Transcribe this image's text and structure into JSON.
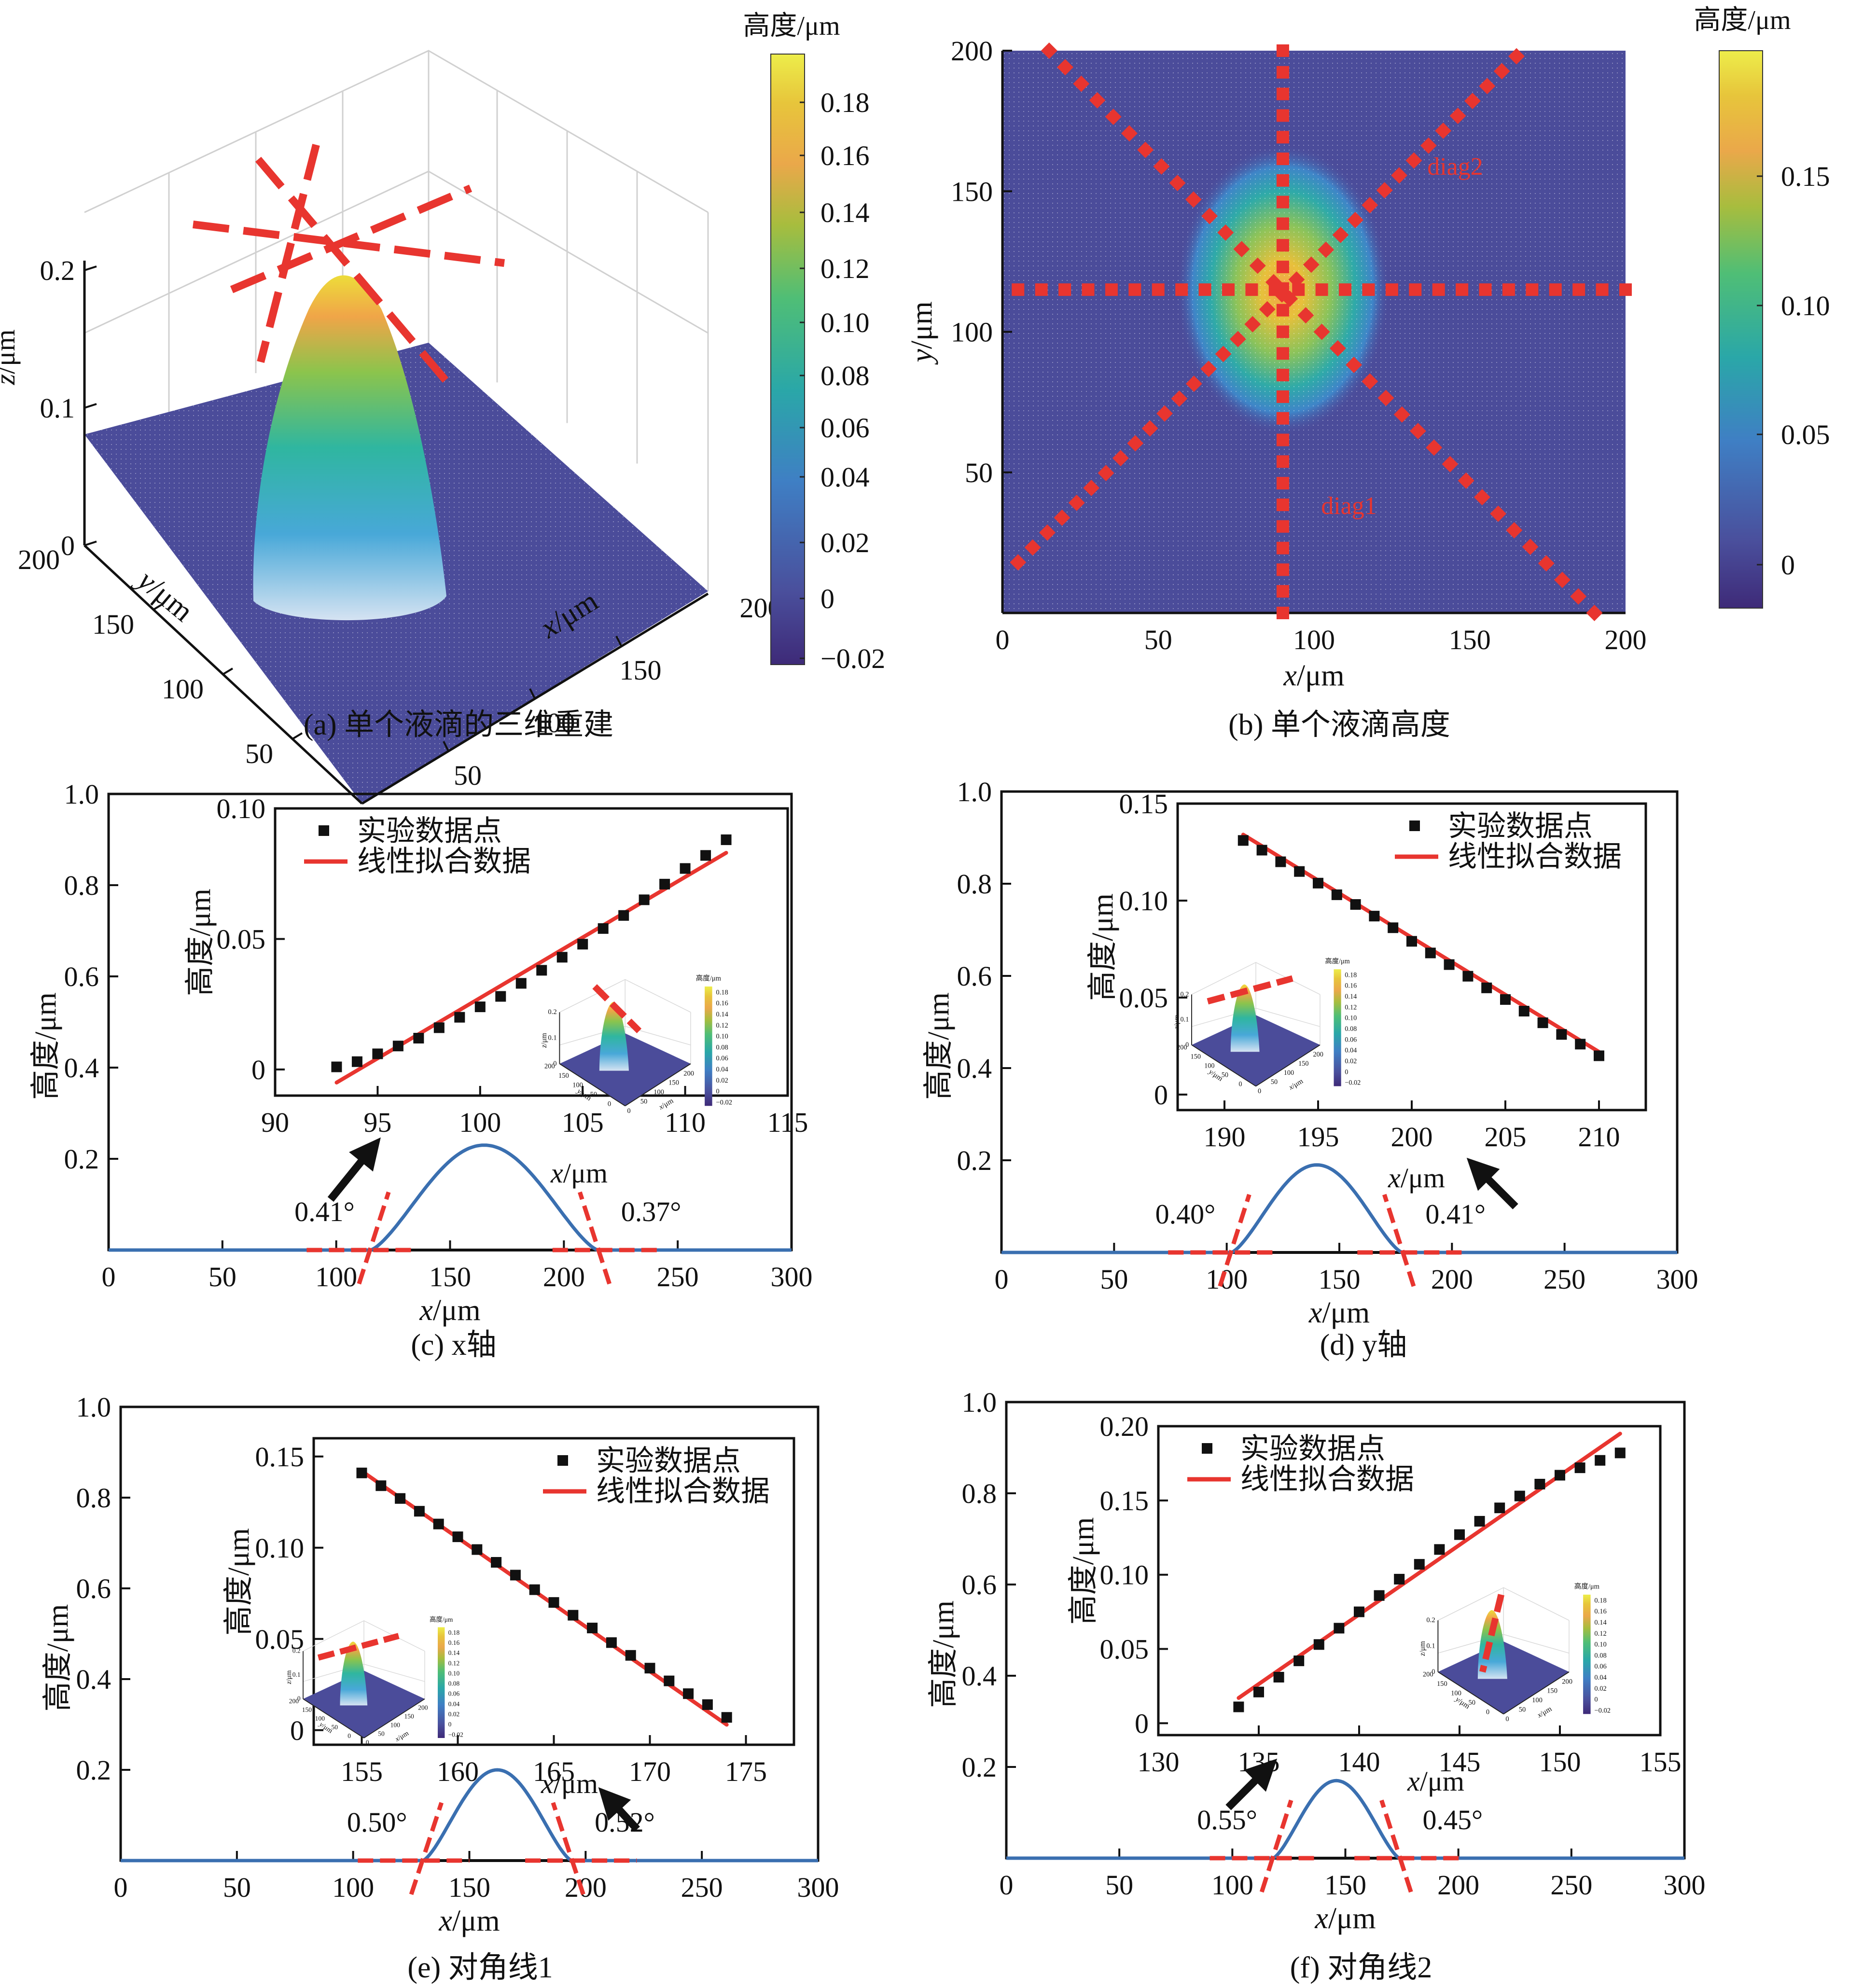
{
  "chart_data": [
    {
      "id": "a",
      "type": "surface3d",
      "caption": "(a) 单个液滴的三维重建",
      "xlabel": "x/μm",
      "ylabel": "y/μm",
      "zlabel": "z/μm",
      "xticks": [
        "0",
        "50",
        "100",
        "150",
        "200"
      ],
      "yticks": [
        "0",
        "50",
        "100",
        "150",
        "200"
      ],
      "zticks": [
        "0",
        "0.1",
        "0.2"
      ],
      "xlim": [
        0,
        200
      ],
      "ylim": [
        0,
        200
      ],
      "zlim": [
        0,
        0.2
      ],
      "colorbar": {
        "title": "高度/μm",
        "ticks": [
          "0.18",
          "0.16",
          "0.14",
          "0.12",
          "0.10",
          "0.08",
          "0.06",
          "0.04",
          "0.02",
          "0",
          "−0.02"
        ],
        "range": [
          -0.02,
          0.2
        ]
      },
      "peak": {
        "x": 90,
        "y": 115,
        "z": 0.19
      },
      "annotation": "red dashed section lines through peak (x-axis, y-axis, diag1, diag2)"
    },
    {
      "id": "b",
      "type": "heatmap",
      "caption": "(b) 单个液滴高度",
      "xlabel": "x/μm",
      "ylabel": "y/μm",
      "xticks": [
        "0",
        "50",
        "100",
        "150",
        "200"
      ],
      "yticks": [
        "50",
        "100",
        "150",
        "200"
      ],
      "xlim": [
        0,
        200
      ],
      "ylim": [
        0,
        200
      ],
      "colorbar": {
        "title": "高度/μm",
        "ticks": [
          "0.15",
          "0.10",
          "0.05",
          "0"
        ],
        "range": [
          -0.02,
          0.19
        ]
      },
      "center": {
        "x": 90,
        "y": 115
      },
      "lines": [
        {
          "name": "horizontal",
          "marker": "square",
          "from": [
            5,
            115
          ],
          "to": [
            200,
            115
          ]
        },
        {
          "name": "vertical",
          "marker": "square",
          "from": [
            90,
            0
          ],
          "to": [
            90,
            200
          ]
        },
        {
          "name": "diag1",
          "label": "diag1",
          "marker": "diamond",
          "from": [
            15,
            200
          ],
          "to": [
            190,
            0
          ]
        },
        {
          "name": "diag2",
          "label": "diag2",
          "marker": "diamond",
          "from": [
            5,
            18
          ],
          "to": [
            165,
            198
          ]
        }
      ]
    },
    {
      "id": "c",
      "type": "line",
      "caption": "(c) x轴",
      "xlabel": "x/μm",
      "ylabel": "高度/μm",
      "xlim": [
        0,
        300
      ],
      "ylim": [
        0,
        1.0
      ],
      "xticks": [
        "0",
        "50",
        "100",
        "150",
        "200",
        "250",
        "300"
      ],
      "yticks": [
        "0.2",
        "0.4",
        "0.6",
        "0.8",
        "1.0"
      ],
      "profile": {
        "center": 165,
        "halfwidth": 50,
        "height": 0.23
      },
      "angles": [
        {
          "text": "0.41°",
          "side": "left"
        },
        {
          "text": "0.37°",
          "side": "right"
        }
      ],
      "inset": {
        "type": "scatter",
        "xlabel": "x/μm",
        "ylabel": "高度/μm",
        "xlim": [
          90,
          115
        ],
        "ylim": [
          -0.01,
          0.1
        ],
        "xticks": [
          "90",
          "95",
          "100",
          "105",
          "110",
          "115"
        ],
        "yticks": [
          "0",
          "0.05",
          "0.10"
        ],
        "legend": [
          "实验数据点",
          "线性拟合数据"
        ],
        "legend_position": "top-left",
        "x": [
          93,
          94,
          95,
          96,
          97,
          98,
          99,
          100,
          101,
          102,
          103,
          104,
          105,
          106,
          107,
          108,
          109,
          110,
          111,
          112
        ],
        "y": [
          0.001,
          0.003,
          0.006,
          0.009,
          0.012,
          0.016,
          0.02,
          0.024,
          0.028,
          0.033,
          0.038,
          0.043,
          0.048,
          0.054,
          0.059,
          0.065,
          0.071,
          0.077,
          0.082,
          0.088
        ],
        "fit": [
          [
            93,
            -0.005
          ],
          [
            112,
            0.083
          ]
        ],
        "mini_position": "bottom-right",
        "mini_line": "diag1"
      }
    },
    {
      "id": "d",
      "type": "line",
      "caption": "(d) y轴",
      "xlabel": "x/μm",
      "ylabel": "高度/μm",
      "xlim": [
        0,
        300
      ],
      "ylim": [
        0,
        1.0
      ],
      "xticks": [
        "0",
        "50",
        "100",
        "150",
        "200",
        "250",
        "300"
      ],
      "yticks": [
        "0.2",
        "0.4",
        "0.6",
        "0.8",
        "1.0"
      ],
      "profile": {
        "center": 140,
        "halfwidth": 38,
        "height": 0.19
      },
      "angles": [
        {
          "text": "0.40°",
          "side": "left"
        },
        {
          "text": "0.41°",
          "side": "right"
        }
      ],
      "inset": {
        "type": "scatter",
        "xlabel": "x/μm",
        "ylabel": "高度/μm",
        "xlim": [
          187.5,
          212.5
        ],
        "ylim": [
          -0.008,
          0.15
        ],
        "xticks": [
          "190",
          "195",
          "200",
          "205",
          "210"
        ],
        "yticks": [
          "0",
          "0.05",
          "0.10",
          "0.15"
        ],
        "legend": [
          "实验数据点",
          "线性拟合数据"
        ],
        "legend_position": "top-right",
        "x": [
          191,
          192,
          193,
          194,
          195,
          196,
          197,
          198,
          199,
          200,
          201,
          202,
          203,
          204,
          205,
          206,
          207,
          208,
          209,
          210
        ],
        "y": [
          0.131,
          0.126,
          0.12,
          0.115,
          0.109,
          0.103,
          0.098,
          0.092,
          0.086,
          0.079,
          0.073,
          0.067,
          0.061,
          0.055,
          0.049,
          0.043,
          0.037,
          0.031,
          0.026,
          0.02
        ],
        "fit": [
          [
            191,
            0.134
          ],
          [
            210,
            0.022
          ]
        ],
        "mini_position": "bottom-left",
        "mini_line": "flat"
      }
    },
    {
      "id": "e",
      "type": "line",
      "caption": "(e) 对角线1",
      "xlabel": "x/μm",
      "ylabel": "高度/μm",
      "xlim": [
        0,
        300
      ],
      "ylim": [
        0,
        1.0
      ],
      "xticks": [
        "0",
        "50",
        "100",
        "150",
        "200",
        "250",
        "300"
      ],
      "yticks": [
        "0.2",
        "0.4",
        "0.6",
        "0.8",
        "1.0"
      ],
      "profile": {
        "center": 162,
        "halfwidth": 32,
        "height": 0.2
      },
      "angles": [
        {
          "text": "0.50°",
          "side": "left"
        },
        {
          "text": "0.52°",
          "side": "right"
        }
      ],
      "inset": {
        "type": "scatter",
        "xlabel": "x/μm",
        "ylabel": "高度/μm",
        "xlim": [
          152.5,
          177.5
        ],
        "ylim": [
          -0.008,
          0.16
        ],
        "xticks": [
          "155",
          "160",
          "165",
          "170",
          "175"
        ],
        "yticks": [
          "0",
          "0.05",
          "0.10",
          "0.15"
        ],
        "legend": [
          "实验数据点",
          "线性拟合数据"
        ],
        "legend_position": "top-right",
        "x": [
          155,
          156,
          157,
          158,
          159,
          160,
          161,
          162,
          163,
          164,
          165,
          166,
          167,
          168,
          169,
          170,
          171,
          172,
          173,
          174
        ],
        "y": [
          0.141,
          0.134,
          0.127,
          0.12,
          0.113,
          0.106,
          0.099,
          0.092,
          0.085,
          0.077,
          0.07,
          0.063,
          0.056,
          0.048,
          0.041,
          0.034,
          0.027,
          0.02,
          0.014,
          0.007
        ],
        "fit": [
          [
            155,
            0.142
          ],
          [
            174,
            0.003
          ]
        ],
        "mini_position": "bottom-left",
        "mini_line": "flat"
      }
    },
    {
      "id": "f",
      "type": "line",
      "caption": "(f) 对角线2",
      "xlabel": "x/μm",
      "ylabel": "高度/μm",
      "xlim": [
        0,
        300
      ],
      "ylim": [
        0,
        1.0
      ],
      "xticks": [
        "0",
        "50",
        "100",
        "150",
        "200",
        "250",
        "300"
      ],
      "yticks": [
        "0.2",
        "0.4",
        "0.6",
        "0.8",
        "1.0"
      ],
      "profile": {
        "center": 146,
        "halfwidth": 28,
        "height": 0.17
      },
      "angles": [
        {
          "text": "0.55°",
          "side": "left"
        },
        {
          "text": "0.45°",
          "side": "right"
        }
      ],
      "inset": {
        "type": "scatter",
        "xlabel": "x/μm",
        "ylabel": "高度/μm",
        "xlim": [
          130,
          155
        ],
        "ylim": [
          -0.008,
          0.2
        ],
        "xticks": [
          "130",
          "135",
          "140",
          "145",
          "150",
          "155"
        ],
        "yticks": [
          "0",
          "0.05",
          "0.10",
          "0.15",
          "0.20"
        ],
        "legend": [
          "实验数据点",
          "线性拟合数据"
        ],
        "legend_position": "top-left",
        "x": [
          134,
          135,
          136,
          137,
          138,
          139,
          140,
          141,
          142,
          143,
          144,
          145,
          146,
          147,
          148,
          149,
          150,
          151,
          152,
          153
        ],
        "y": [
          0.011,
          0.021,
          0.031,
          0.042,
          0.053,
          0.064,
          0.075,
          0.086,
          0.097,
          0.107,
          0.117,
          0.127,
          0.136,
          0.145,
          0.153,
          0.161,
          0.167,
          0.172,
          0.177,
          0.182
        ],
        "fit": [
          [
            134,
            0.017
          ],
          [
            153,
            0.195
          ]
        ],
        "mini_position": "bottom-right",
        "mini_line": "steep"
      }
    }
  ],
  "minicolorbar_ticks": [
    "0.18",
    "0.16",
    "0.14",
    "0.12",
    "0.10",
    "0.08",
    "0.06",
    "0.04",
    "0.02",
    "0",
    "−0.02"
  ],
  "mini_title": "高度/μm",
  "mini_axes": {
    "z": [
      "0.2",
      "0.1",
      "0"
    ],
    "y": [
      "200",
      "150",
      "100",
      "50",
      "0"
    ],
    "x": [
      "0",
      "50",
      "100",
      "150",
      "200"
    ],
    "xlabel": "x/μm",
    "ylabel": "y/μm",
    "zlabel": "z/μm"
  },
  "colors": {
    "fit_red": "#e8352f",
    "curve_blue": "#3a6fb0",
    "surface_base": "#4b4c9a",
    "marker": "#111111",
    "arrow": "#111111"
  }
}
